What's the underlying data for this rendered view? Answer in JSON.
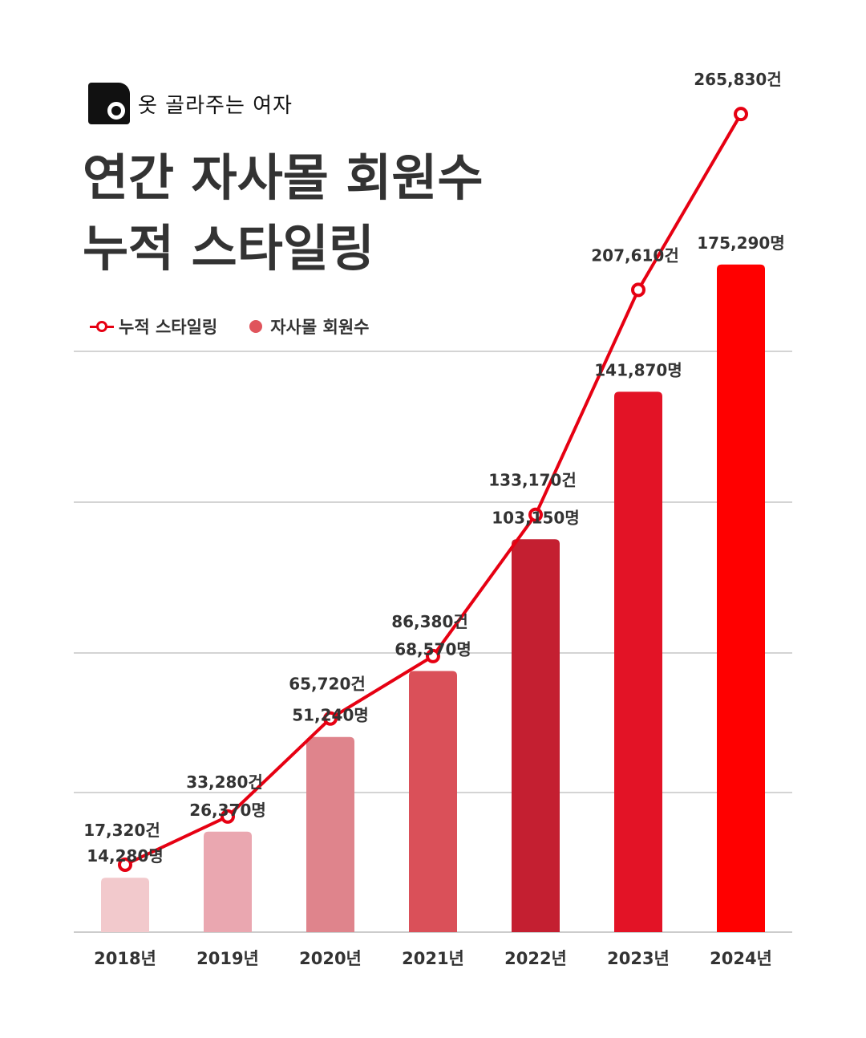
{
  "brand": {
    "logo_text": "옷 골라주는 여자"
  },
  "header": {
    "title_line1": "연간 자사몰 회원수",
    "title_line2": "누적 스타일링"
  },
  "legend": {
    "line_label": "누적 스타일링",
    "bar_label": "자사몰 회원수"
  },
  "colors": {
    "line": "#e60012",
    "bars": [
      "#f2c9cc",
      "#eaa7b0",
      "#df848c",
      "#da5059",
      "#c41f31",
      "#e31326",
      "#ff0000"
    ]
  },
  "chart_data": {
    "type": "bar+line",
    "categories": [
      "2018년",
      "2019년",
      "2020년",
      "2021년",
      "2022년",
      "2023년",
      "2024년"
    ],
    "series": [
      {
        "name": "자사몰 회원수",
        "type": "bar",
        "values": [
          14280,
          26370,
          51240,
          68570,
          103150,
          141870,
          175290
        ],
        "labels": [
          "14,280명",
          "26,370명",
          "51,240명",
          "68,570명",
          "103,150명",
          "141,870명",
          "175,290명"
        ],
        "ylim": [
          0,
          230000
        ]
      },
      {
        "name": "누적 스타일링",
        "type": "line",
        "values": [
          17320,
          33280,
          65720,
          86380,
          133170,
          207610,
          265830
        ],
        "labels": [
          "17,320건",
          "33,280건",
          "65,720건",
          "86,380건",
          "133,170건",
          "207,610건",
          "265,830건"
        ],
        "ylim": [
          -5000,
          285000
        ]
      }
    ],
    "grid": true,
    "title": "연간 자사몰 회원수 누적 스타일링"
  }
}
